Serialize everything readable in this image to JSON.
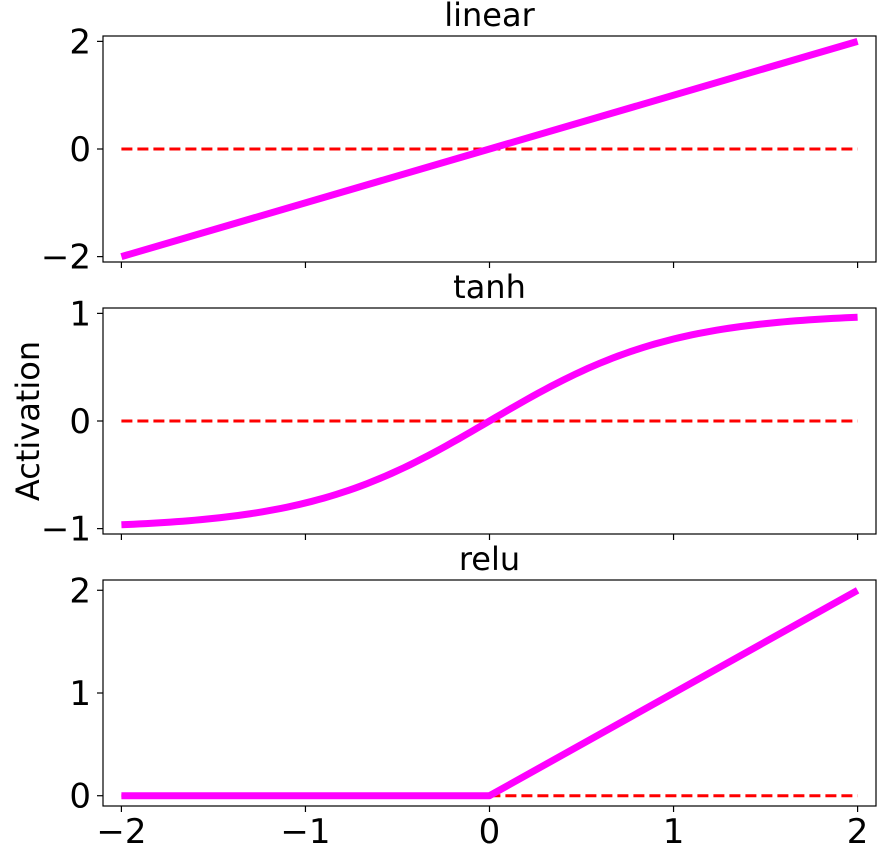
{
  "figure": {
    "ylabel": "Activation"
  },
  "chart_data": [
    {
      "type": "line",
      "title": "linear",
      "xlabel": "",
      "ylabel": "",
      "xlim": [
        -2.1,
        2.1
      ],
      "ylim": [
        -2.1,
        2.1
      ],
      "xticks": [
        -2,
        -1,
        0,
        1,
        2
      ],
      "xtick_labels": [
        "",
        "",
        "",
        "",
        ""
      ],
      "yticks": [
        -2,
        0,
        2
      ],
      "ytick_labels": [
        "−2",
        "0",
        "2"
      ],
      "grid": false,
      "series": [
        {
          "function": "linear",
          "x": [
            -2,
            2
          ],
          "y": [
            -2,
            2
          ],
          "color": "#ff00ff",
          "style": "solid"
        },
        {
          "function": "zero",
          "x": [
            -2,
            2
          ],
          "y": [
            0,
            0
          ],
          "color": "#ff0000",
          "style": "dashed"
        }
      ]
    },
    {
      "type": "line",
      "title": "tanh",
      "xlabel": "",
      "ylabel": "",
      "xlim": [
        -2.1,
        2.1
      ],
      "ylim": [
        -1.05,
        1.05
      ],
      "xticks": [
        -2,
        -1,
        0,
        1,
        2
      ],
      "xtick_labels": [
        "",
        "",
        "",
        "",
        ""
      ],
      "yticks": [
        -1,
        0,
        1
      ],
      "ytick_labels": [
        "−1",
        "0",
        "1"
      ],
      "grid": false,
      "series": [
        {
          "function": "tanh",
          "x": [
            -2,
            2
          ],
          "y": [
            -0.964,
            0.964
          ],
          "color": "#ff00ff",
          "style": "solid"
        },
        {
          "function": "zero",
          "x": [
            -2,
            2
          ],
          "y": [
            0,
            0
          ],
          "color": "#ff0000",
          "style": "dashed"
        }
      ]
    },
    {
      "type": "line",
      "title": "relu",
      "xlabel": "",
      "ylabel": "",
      "xlim": [
        -2.1,
        2.1
      ],
      "ylim": [
        -0.1,
        2.1
      ],
      "xticks": [
        -2,
        -1,
        0,
        1,
        2
      ],
      "xtick_labels": [
        "−2",
        "−1",
        "0",
        "1",
        "2"
      ],
      "yticks": [
        0,
        1,
        2
      ],
      "ytick_labels": [
        "0",
        "1",
        "2"
      ],
      "grid": false,
      "series": [
        {
          "function": "relu",
          "x": [
            -2,
            0,
            2
          ],
          "y": [
            0,
            0,
            2
          ],
          "color": "#ff00ff",
          "style": "solid"
        },
        {
          "function": "zero",
          "x": [
            -2,
            2
          ],
          "y": [
            0,
            0
          ],
          "color": "#ff0000",
          "style": "dashed"
        }
      ]
    }
  ]
}
